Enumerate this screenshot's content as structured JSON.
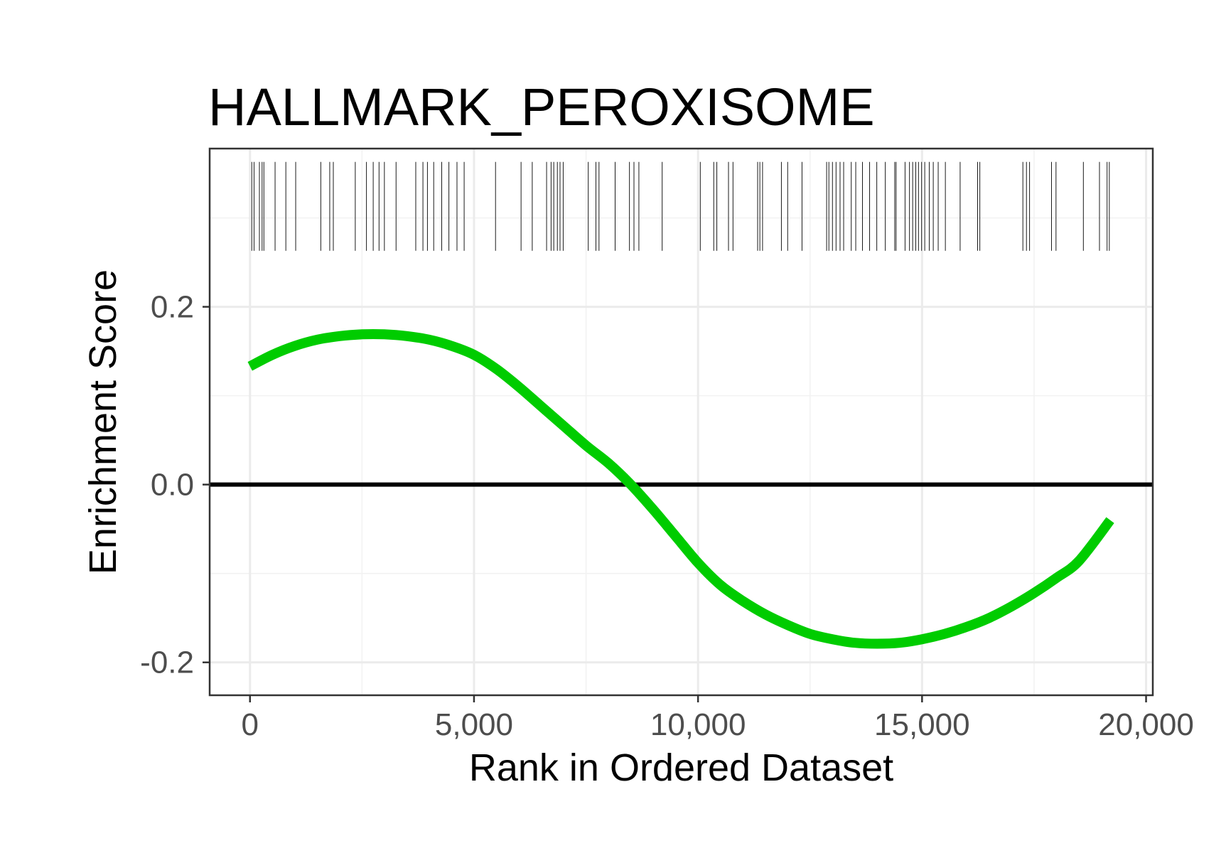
{
  "chart_data": {
    "type": "line",
    "title": "HALLMARK_PEROXISOME",
    "xlabel": "Rank in Ordered Dataset",
    "ylabel": "Enrichment Score",
    "xlim": [
      -900,
      20150
    ],
    "ylim": [
      -0.237,
      0.378
    ],
    "x_ticks": [
      0,
      5000,
      10000,
      15000,
      20000
    ],
    "x_tick_labels": [
      "0",
      "5,000",
      "10,000",
      "15,000",
      "20,000"
    ],
    "y_ticks": [
      -0.2,
      0.0,
      0.2
    ],
    "y_tick_labels": [
      "-0.2",
      "0.0",
      "0.2"
    ],
    "grid": true,
    "zero_line": 0,
    "gene_hit_band": [
      0.263,
      0.363
    ],
    "colors": {
      "curve": "#00cc00",
      "zero_line": "#000000",
      "hits": "#000000",
      "grid_major": "#ebebeb",
      "grid_minor": "#f2f2f2",
      "panel_border": "#333333"
    },
    "series": [
      {
        "x": [
          0,
          500,
          1000,
          1500,
          2000,
          2500,
          3000,
          3500,
          4000,
          4500,
          5000,
          5500,
          6000,
          6500,
          7000,
          7500,
          8000,
          8500,
          9000,
          9500,
          10000,
          10500,
          11000,
          11500,
          12000,
          12500,
          13000,
          13500,
          14000,
          14500,
          15000,
          15500,
          16000,
          16500,
          17000,
          17500,
          18000,
          18500,
          19200
        ],
        "y": [
          0.133,
          0.146,
          0.156,
          0.163,
          0.167,
          0.169,
          0.169,
          0.167,
          0.163,
          0.156,
          0.146,
          0.13,
          0.11,
          0.088,
          0.066,
          0.044,
          0.024,
          0.0,
          -0.028,
          -0.058,
          -0.088,
          -0.113,
          -0.131,
          -0.146,
          -0.158,
          -0.168,
          -0.174,
          -0.178,
          -0.179,
          -0.178,
          -0.174,
          -0.168,
          -0.16,
          -0.15,
          -0.137,
          -0.122,
          -0.105,
          -0.086,
          -0.04
        ]
      }
    ],
    "gene_hits": [
      40,
      90,
      210,
      270,
      310,
      560,
      800,
      1020,
      1580,
      1780,
      1860,
      2350,
      2600,
      2750,
      2880,
      3000,
      3260,
      3700,
      3860,
      3960,
      4100,
      4280,
      4440,
      4620,
      4780,
      5480,
      6050,
      6300,
      6620,
      6720,
      6780,
      6860,
      6920,
      6990,
      7550,
      7720,
      7790,
      8150,
      8470,
      8570,
      8680,
      9200,
      10050,
      10350,
      10420,
      10680,
      10780,
      11330,
      11380,
      11440,
      11860,
      12000,
      12320,
      12870,
      12920,
      13000,
      13080,
      13170,
      13250,
      13420,
      13520,
      13670,
      13830,
      13990,
      14180,
      14390,
      14420,
      14620,
      14720,
      14790,
      14860,
      14920,
      14990,
      15060,
      15160,
      15250,
      15360,
      15520,
      15850,
      16240,
      16290,
      17250,
      17330,
      17400,
      17890,
      17990,
      18600,
      18960,
      19130,
      19180
    ]
  }
}
